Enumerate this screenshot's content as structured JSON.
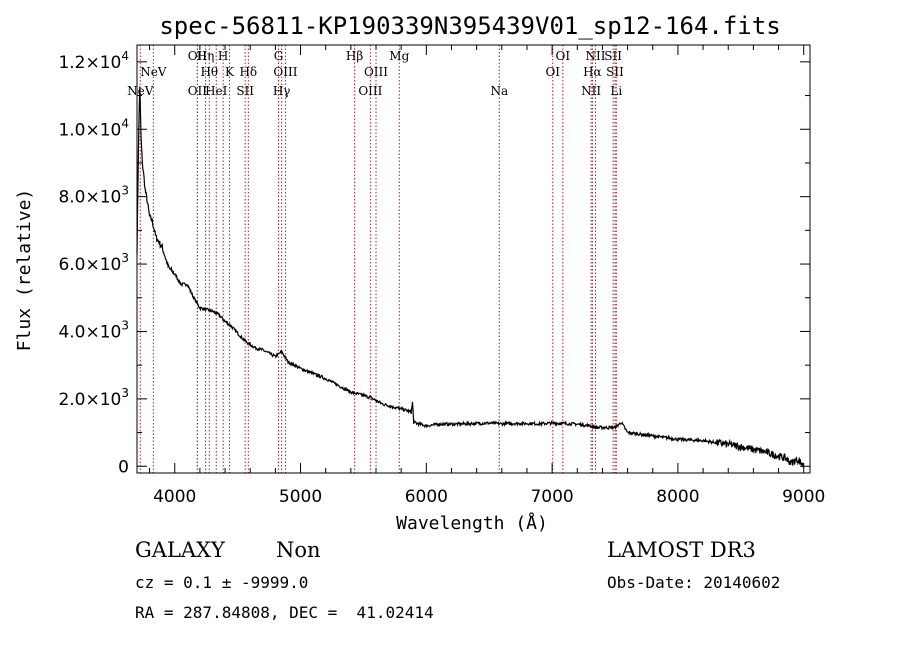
{
  "chart_data": {
    "type": "line",
    "title": "spec-56811-KP190339N395439V01_sp12-164.fits",
    "xlabel": "Wavelength (Å)",
    "ylabel": "Flux (relative)",
    "xlim": [
      3700,
      9050
    ],
    "ylim": [
      -200,
      12500
    ],
    "x_ticks": [
      {
        "value": 4000,
        "label": "4000"
      },
      {
        "value": 5000,
        "label": "5000"
      },
      {
        "value": 6000,
        "label": "6000"
      },
      {
        "value": 7000,
        "label": "7000"
      },
      {
        "value": 8000,
        "label": "8000"
      },
      {
        "value": 9000,
        "label": "9000"
      }
    ],
    "y_ticks": [
      {
        "value": 0,
        "mant": "0",
        "exp": ""
      },
      {
        "value": 2000,
        "mant": "2.0×10",
        "exp": "3"
      },
      {
        "value": 4000,
        "mant": "4.0×10",
        "exp": "3"
      },
      {
        "value": 6000,
        "mant": "6.0×10",
        "exp": "3"
      },
      {
        "value": 8000,
        "mant": "8.0×10",
        "exp": "3"
      },
      {
        "value": 10000,
        "mant": "1.0×10",
        "exp": "4"
      },
      {
        "value": 12000,
        "mant": "1.2×10",
        "exp": "4"
      }
    ],
    "series": [
      {
        "name": "flux",
        "x": [
          3700,
          3712,
          3722,
          3732,
          3742,
          3752,
          3765,
          3780,
          3800,
          3820,
          3850,
          3900,
          3950,
          4000,
          4050,
          4100,
          4150,
          4200,
          4250,
          4300,
          4350,
          4400,
          4450,
          4500,
          4550,
          4600,
          4650,
          4700,
          4750,
          4800,
          4850,
          4900,
          4950,
          5000,
          5100,
          5200,
          5300,
          5400,
          5500,
          5550,
          5600,
          5650,
          5700,
          5750,
          5800,
          5850,
          5880,
          5890,
          5900,
          5950,
          6000,
          6100,
          6200,
          6300,
          6400,
          6500,
          6600,
          6700,
          6800,
          6900,
          7000,
          7100,
          7200,
          7300,
          7350,
          7400,
          7450,
          7500,
          7550,
          7600,
          7700,
          7800,
          7900,
          8000,
          8100,
          8200,
          8300,
          8400,
          8500,
          8600,
          8700,
          8800,
          8850,
          8900,
          8950,
          8980,
          9000
        ],
        "y": [
          6400,
          9500,
          11300,
          9800,
          9000,
          8700,
          8200,
          7900,
          7400,
          7300,
          6800,
          6500,
          5900,
          5700,
          5400,
          5400,
          5000,
          4700,
          4650,
          4600,
          4500,
          4300,
          4150,
          3950,
          3750,
          3600,
          3500,
          3450,
          3350,
          3250,
          3400,
          3100,
          3000,
          2900,
          2750,
          2600,
          2400,
          2200,
          2100,
          2050,
          1950,
          1850,
          1800,
          1750,
          1700,
          1650,
          1600,
          1900,
          1300,
          1250,
          1200,
          1250,
          1250,
          1260,
          1270,
          1280,
          1260,
          1270,
          1270,
          1260,
          1280,
          1270,
          1250,
          1200,
          1150,
          1150,
          1150,
          1150,
          1300,
          1000,
          950,
          900,
          850,
          800,
          780,
          760,
          700,
          650,
          580,
          500,
          420,
          300,
          250,
          100,
          200,
          100,
          0
        ]
      }
    ],
    "line_markers": [
      {
        "name": "NeV",
        "x": 3726,
        "row": 2
      },
      {
        "name": "NeV",
        "x": 3830,
        "row": 1
      },
      {
        "name": "OII",
        "x": 4180,
        "row": 0
      },
      {
        "name": "OII",
        "x": 4180,
        "row": 2
      },
      {
        "name": "Hη",
        "x": 4245,
        "row": 0
      },
      {
        "name": "Hθ",
        "x": 4275,
        "row": 1
      },
      {
        "name": "HeI",
        "x": 4330,
        "row": 2
      },
      {
        "name": "H",
        "x": 4385,
        "row": 0
      },
      {
        "name": "K",
        "x": 4435,
        "row": 1
      },
      {
        "name": "SII",
        "x": 4560,
        "row": 2
      },
      {
        "name": "Hδ",
        "x": 4585,
        "row": 1
      },
      {
        "name": "G",
        "x": 4825,
        "row": 0
      },
      {
        "name": "Hγ",
        "x": 4850,
        "row": 2
      },
      {
        "name": "OIII",
        "x": 4880,
        "row": 1
      },
      {
        "name": "Hβ",
        "x": 5430,
        "row": 0
      },
      {
        "name": "OIII",
        "x": 5555,
        "row": 2
      },
      {
        "name": "OIII",
        "x": 5600,
        "row": 1
      },
      {
        "name": "Mg",
        "x": 5785,
        "row": 0
      },
      {
        "name": "Na",
        "x": 6580,
        "row": 2
      },
      {
        "name": "OI",
        "x": 7005,
        "row": 1
      },
      {
        "name": "OI",
        "x": 7085,
        "row": 0
      },
      {
        "name": "NII",
        "x": 7310,
        "row": 2
      },
      {
        "name": "Hα",
        "x": 7320,
        "row": 1
      },
      {
        "name": "NII",
        "x": 7345,
        "row": 0
      },
      {
        "name": "SII",
        "x": 7485,
        "row": 0
      },
      {
        "name": "SII",
        "x": 7500,
        "row": 1
      },
      {
        "name": "Li",
        "x": 7510,
        "row": 2
      }
    ],
    "colors": {
      "line": "#000000",
      "marker": "#b22222",
      "axis": "#000000"
    }
  },
  "info": {
    "class_label": "GALAXY",
    "subclass_label": "Non",
    "survey": "LAMOST DR3",
    "cz_text": "cz = 0.1 ± -9999.0",
    "obs_date_text": "Obs-Date: 20140602",
    "radec_text": "RA = 287.84808, DEC =  41.02414"
  }
}
